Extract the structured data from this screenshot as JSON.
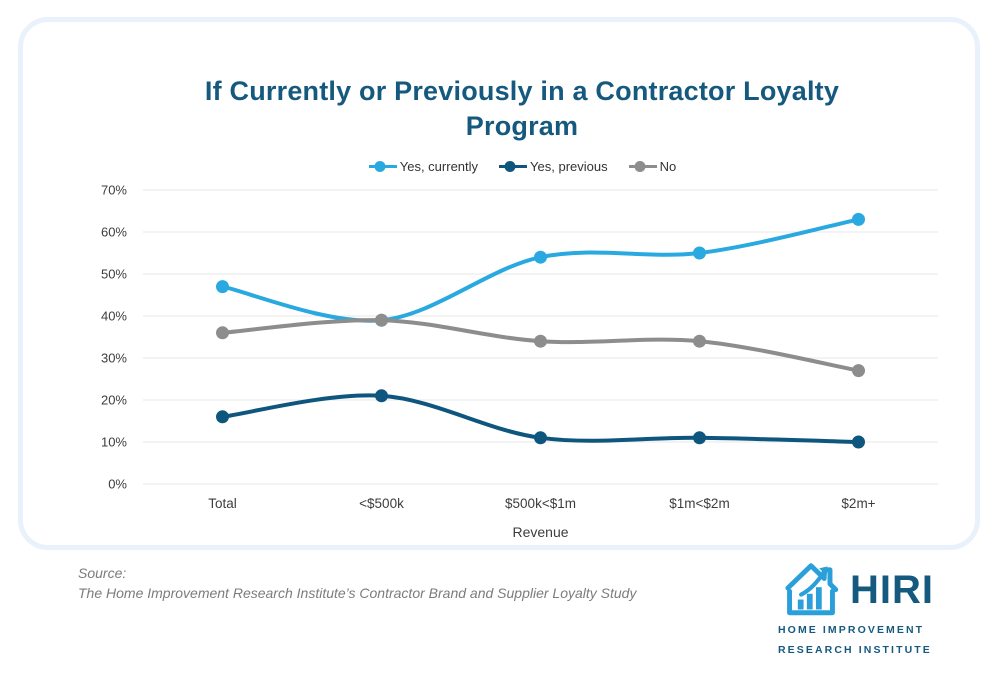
{
  "chart_data": {
    "type": "line",
    "title": "If Currently or Previously in a Contractor Loyalty Program",
    "xlabel": "Revenue",
    "ylabel": "",
    "categories": [
      "Total",
      "<$500k",
      "$500k<$1m",
      "$1m<$2m",
      "$2m+"
    ],
    "series": [
      {
        "name": "Yes, currently",
        "color": "#29A9E0",
        "values": [
          47,
          39,
          54,
          55,
          63
        ]
      },
      {
        "name": "Yes, previous",
        "color": "#0F567E",
        "values": [
          16,
          21,
          11,
          11,
          10
        ]
      },
      {
        "name": "No",
        "color": "#8D8D8D",
        "values": [
          36,
          39,
          34,
          34,
          27
        ]
      }
    ],
    "ylim": [
      0,
      70
    ],
    "ytick_step": 10,
    "ytick_labels": [
      "0%",
      "10%",
      "20%",
      "30%",
      "40%",
      "50%",
      "60%",
      "70%"
    ],
    "grid": "horizontal",
    "legend_position": "top"
  },
  "source": {
    "label": "Source:",
    "text": "The Home Improvement Research Institute’s Contractor Brand and Supplier Loyalty Study"
  },
  "logo": {
    "name": "HIRI",
    "line1": "HOME IMPROVEMENT",
    "line2": "RESEARCH INSTITUTE"
  },
  "icons": {
    "logo": "house-growth-arrow-icon"
  },
  "colors": {
    "title": "#16597F",
    "card_border": "#E9F1FB",
    "gridline": "#E7E7E7",
    "tick_text": "#3d3d3d",
    "source_text": "#7C7C7C",
    "logo_blue": "#2B9FD9",
    "logo_navy": "#16597F"
  }
}
